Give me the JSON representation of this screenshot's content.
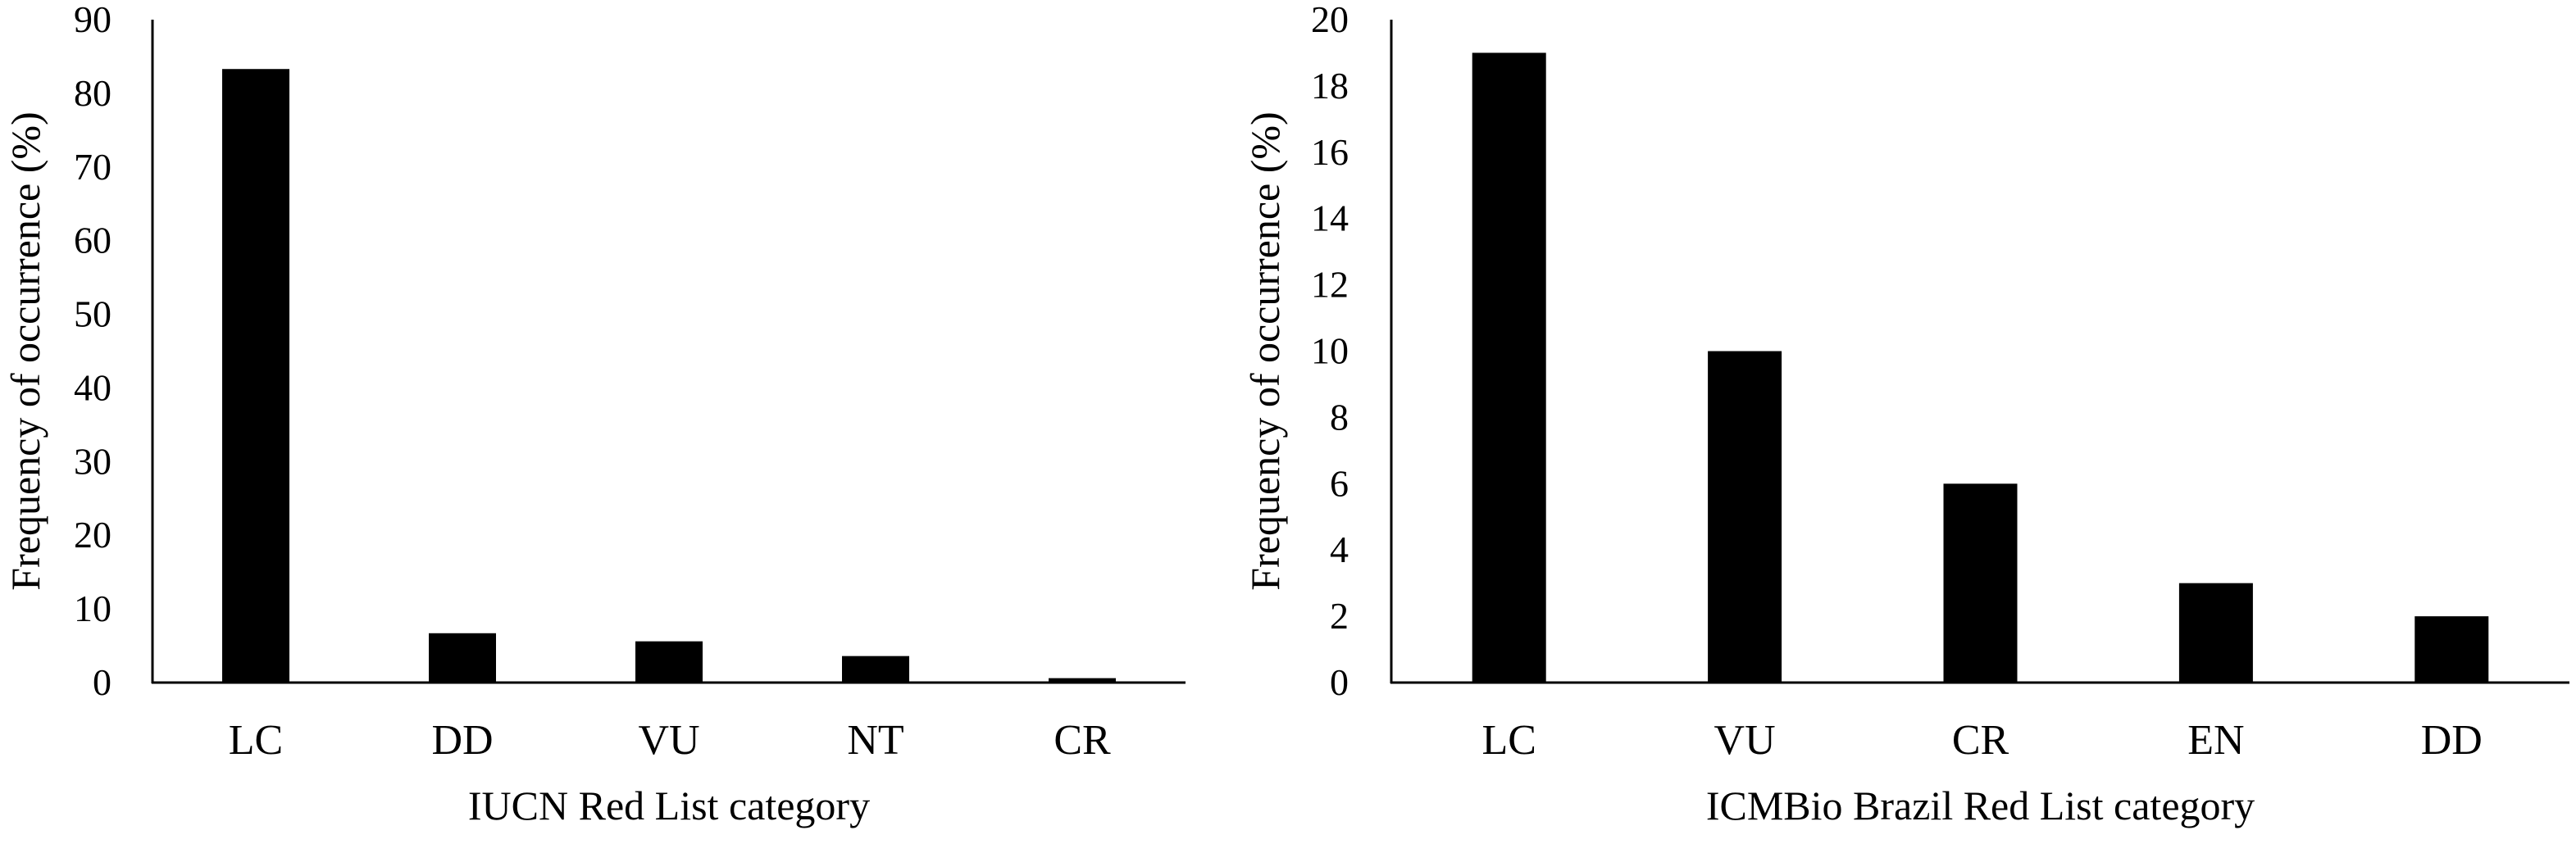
{
  "chart_data": [
    {
      "type": "bar",
      "categories": [
        "LC",
        "DD",
        "VU",
        "NT",
        "CR"
      ],
      "values": [
        83.3,
        6.7,
        5.6,
        3.6,
        0.6
      ],
      "title": "",
      "xlabel": "IUCN Red List category",
      "ylabel": "Frequency of occurrence (%)",
      "ylim": [
        0,
        90
      ],
      "yticks": [
        0,
        10,
        20,
        30,
        40,
        50,
        60,
        70,
        80,
        90
      ],
      "grid": false,
      "bar_color": "#000000"
    },
    {
      "type": "bar",
      "categories": [
        "LC",
        "VU",
        "CR",
        "EN",
        "DD"
      ],
      "values": [
        19,
        10,
        6,
        3,
        2
      ],
      "title": "",
      "xlabel": "ICMBio Brazil Red List category",
      "ylabel": "Frequency of occurrence (%)",
      "ylim": [
        0,
        20
      ],
      "yticks": [
        0,
        2,
        4,
        6,
        8,
        10,
        12,
        14,
        16,
        18,
        20
      ],
      "grid": false,
      "bar_color": "#000000"
    }
  ]
}
